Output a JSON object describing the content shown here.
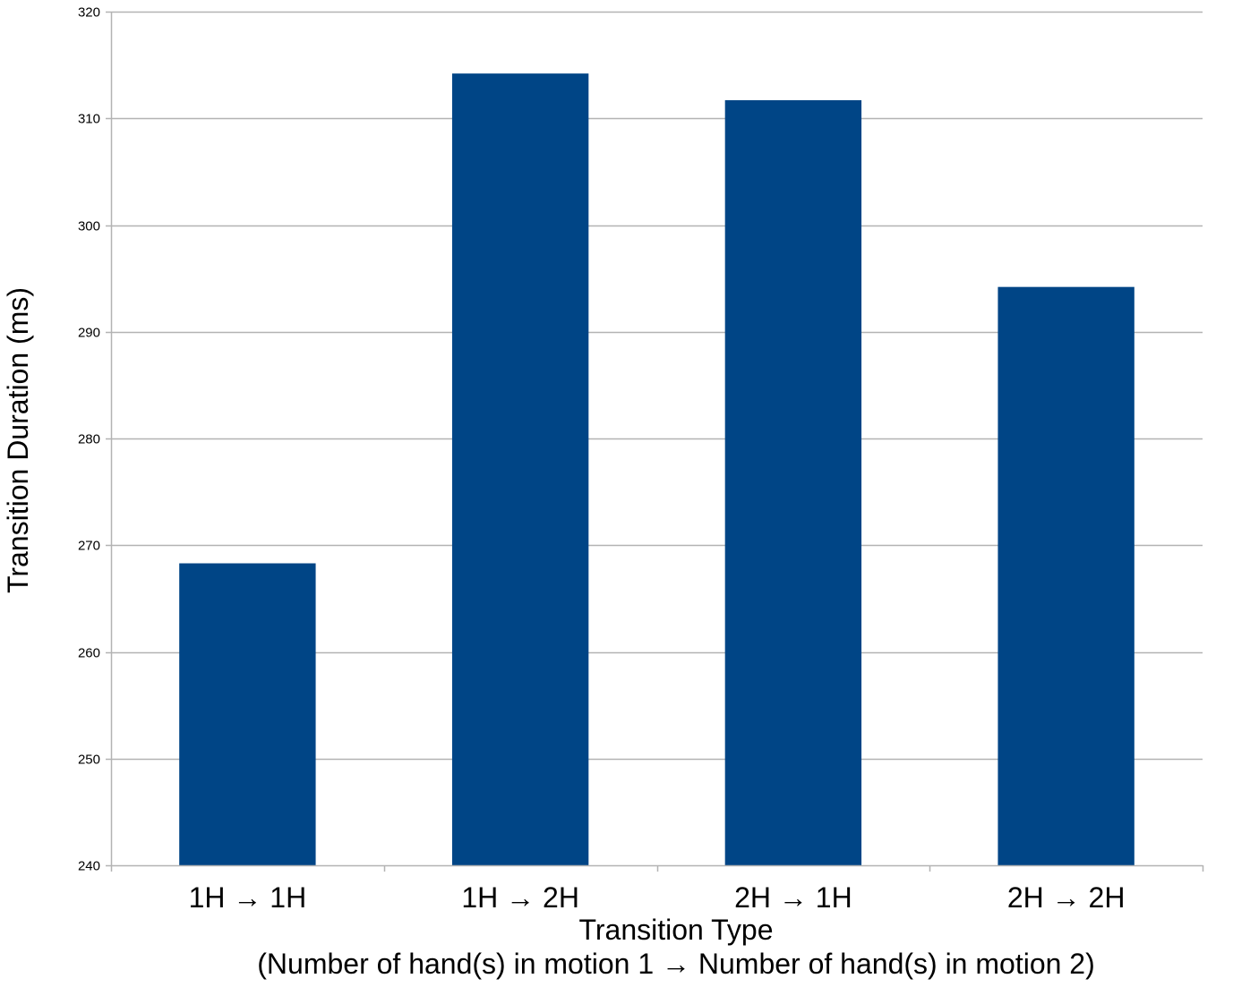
{
  "chart_data": {
    "type": "bar",
    "categories": [
      "1H → 1H",
      "1H → 2H",
      "2H → 1H",
      "2H → 2H"
    ],
    "values": [
      268.3,
      314.2,
      311.7,
      294.2
    ],
    "xlabel": "Transition Type",
    "xlabel_sub": "(Number of hand(s) in motion 1 → Number of hand(s) in motion 2)",
    "ylabel": "Transition Duration (ms)",
    "ylim": [
      240,
      320
    ],
    "yticks": [
      240,
      250,
      260,
      270,
      280,
      290,
      300,
      310,
      320
    ],
    "grid": true,
    "legend": "none",
    "bar_color": "#004586",
    "grid_color": "#b3b3b3",
    "axis_color": "#b3b3b3"
  }
}
